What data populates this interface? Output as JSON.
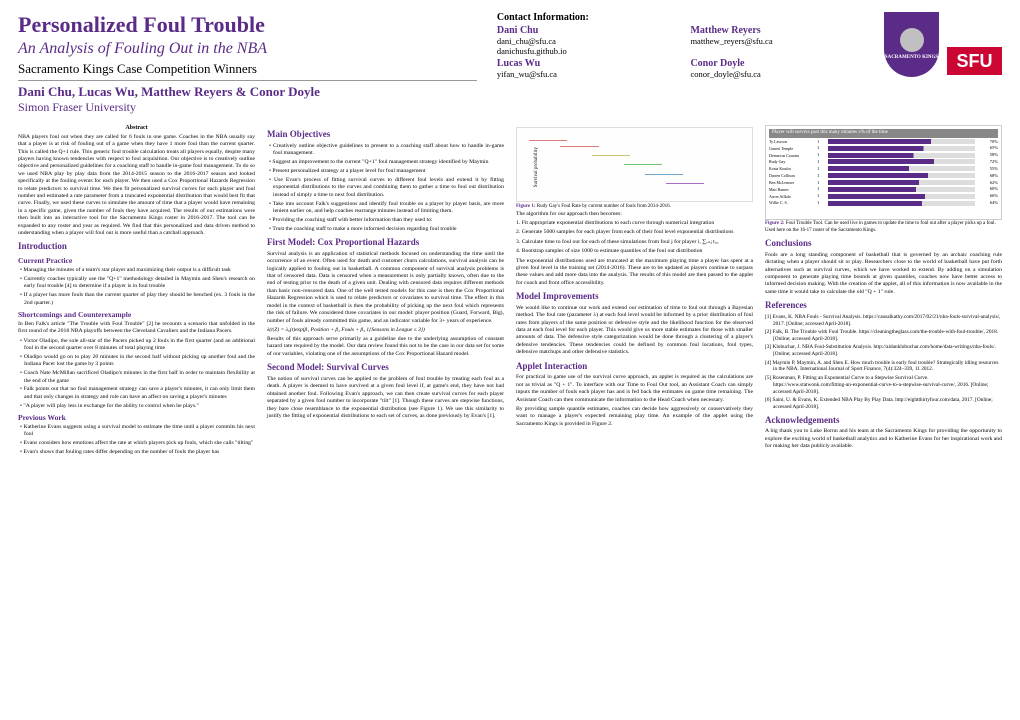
{
  "header": {
    "title": "Personalized Foul Trouble",
    "subtitle": "An Analysis of Fouling Out in the NBA",
    "competition": "Sacramento Kings Case Competition Winners",
    "authors": "Dani Chu, Lucas Wu, Matthew Reyers & Conor Doyle",
    "affiliation": "Simon Fraser University",
    "contact_title": "Contact Information:",
    "contacts": [
      {
        "name": "Dani Chu",
        "email": "dani_chu@sfu.ca",
        "extra": "danichusfu.github.io"
      },
      {
        "name": "Matthew Reyers",
        "email": "matthew_reyers@sfu.ca"
      },
      {
        "name": "Lucas Wu",
        "email": "yifan_wu@sfu.ca"
      },
      {
        "name": "Conor Doyle",
        "email": "conor_doyle@sfu.ca"
      }
    ],
    "logo_sfu": "SFU",
    "logo_kings": "SACRAMENTO KINGS"
  },
  "col1": {
    "abstract_label": "Abstract",
    "abstract": "NBA players foul out when they are called for 6 fouls in one game. Coaches in the NBA usually say that a player is at risk of fouling out of a game when they have 1 more foul than the current quarter. This is called the Q+1 rule. This generic foul trouble calculation treats all players equally, despite many players having known tendencies with respect to foul acquisition. Our objective is to creatively outline objective and personalized guidelines for a coaching staff to handle in-game foul management. To do so we used NBA play by play data from the 2014-2015 season to the 2016-2017 season and looked specifically at the fouling events for each player. We then used a Cox Proportional Hazards Regression to relate predictors to survival time. We then fit personalized survival curves for each player and foul number and estimated a rate parameter from a truncated exponential distribution that would best fit that curve. Finally, we used these curves to simulate the amount of time that a player would have remaining in a specific game, given the number of fouls they have acquired. The results of our estimations were then built into an interactive tool for the Sacramento Kings roster in 2016-2017. The tool can be expanded to any roster and year as required. We find that this personalized and data driven method to understanding when a player will foul out is more useful than a catchall approach.",
    "intro_title": "Introduction",
    "cp_title": "Current Practice",
    "cp_b1": "Managing the minutes of a team's star player and maximizing their output is a difficult task",
    "cp_b2": "Currently coaches typically use the \"Q+1\" methodology detailed in Maymin and Shen's research on early foul trouble [4] to determine if a player is in foul trouble",
    "cp_b3": "If a player has more fouls than the current quarter of play they should be benched (ex. 3 fouls in the 2nd quarter.)",
    "sc_title": "Shortcomings and Counterexample",
    "sc_para": "In Ben Falk's article \"The Trouble with Foul Trouble\" [2] he recounts a scenario that unfolded in the first round of the 2018 NBA playoffs between the Cleveland Cavaliers and the Indiana Pacers.",
    "sc_b1": "Victor Oladipo, the sole all-star of the Pacers picked up 2 fouls in the first quarter (and an additional foul in the second quarter over 8 minutes of total playing time",
    "sc_b2": "Oladipo would go on to play 20 minutes in the second half without picking up another foul and the Indiana Pacer lost the game by 3 points",
    "sc_b3": "Coach Nate McMillan sacrificed Oladipo's minutes in the first half in order to maintain flexibility at the end of the game",
    "sc_b4": "Falk points out that no foul management strategy can save a player's minutes, it can only limit them and that only changes in strategy and role can have an affect on saving a player's minutes",
    "sc_b5": "\"A player will play less in exchange for the ability to control when he plays.\"",
    "pw_title": "Previous Work",
    "pw_b1": "Katherine Evans suggests using a survival model to estimate the time until a player commits his next foul",
    "pw_b2": "Evans considers how emotions affect the rate at which players pick up fouls, which she calls \"tilting\"",
    "pw_b3": "Evan's shows that fouling rates differ depending on the number of fouls the player has"
  },
  "col2": {
    "mo_title": "Main Objectives",
    "mo_b1": "Creatively outline objective guidelines to present to a coaching staff about how to handle in-game foul management.",
    "mo_b2": "Suggest an improvement to the current \"Q+1\" foul management strategy identified by Maymin",
    "mo_b3": "Present personalized strategy at a player level for foul management",
    "mo_b4": "Use Evan's process of fitting survival curves to different foul levels and extend it by fitting exponential distributions to the curves and combining them to gather a time to foul out distribution instead of simply a time to next foul distribution.",
    "mo_b5": "Take into account Falk's suggestions and identify foul trouble on a player by player basis, are more lenient earlier on, and help coaches rearrange minutes instead of limiting them.",
    "mo_b6": "Providing the coaching staff with better information than they used to:",
    "mo_b7": "Trust the coaching staff to make a more informed decision regarding foul trouble",
    "fm_title": "First Model: Cox Proportional Hazards",
    "fm_p1": "Survival analysis is an application of statistical methods focused on understanding the time until the occurrence of an event. Often used for death and customer churn calculations, survival analysis can be logically applied to fouling out in basketball. A common component of survival analysis problems is that of censored data. Data is censored when a measurement is only partially known, often due to the end of testing prior to the death of a given unit. Dealing with censored data requires different methods than basic non-censored data. One of the well tested models for this case is then the Cox Proportional Hazards Regression which is used to relate predictors or covariates to survival time. The effect in this model in the context of basketball is then the probability of picking up the next foul which represents the risk of failure. We considered three covariates in our model: player position (Guard, Forward, Big), number of fouls already committed this game, and an indicator variable for 3+ years of experience.",
    "fm_formula": "λ(t|Z) = λ₀(t)exp(β₁ Position + β₂ Fouls + β₃ 1{Seasons in League ≤ 3})",
    "fm_p2": "Results of this approach serve primarily as a guideline due to the underlying assumption of constant hazard rate required by the model. Our data review found this not to be the case in our data set for some of our variables, violating one of the assumptions of the Cox Proportional Hazard model.",
    "sm_title": "Second Model: Survival Curves",
    "sm_p1": "The notion of survival curves can be applied to the problem of foul trouble by treating each foul as a death. A player is deemed to have survived at a given foul level if, at game's end, they have not had obtained another foul. Following Evan's approach, we can then create survival curves for each player separated by a given foul number to incorporate \"tilt\" [1]. Though these curves are stepwise functions, they bare close resemblance to the exponential distribution (see Figure 1). We use this similarity to justify the fitting of exponential distributions to each set of curves, as done previously by Evan's [1]."
  },
  "col3": {
    "fig1": {
      "caption_label": "Figure 1:",
      "caption": "Rudy Gay's Foul Rate by current number of fouls from 2014-2016.",
      "yaxis": "Survival probability",
      "series": [
        {
          "label": "FOUL_FROM=0",
          "color": "#e07b7b"
        },
        {
          "label": "FOUL_FROM=1",
          "color": "#c5c76d"
        },
        {
          "label": "FOUL_FROM=2",
          "color": "#6dc77b"
        },
        {
          "label": "FOUL_FROM=3",
          "color": "#6da7c7"
        },
        {
          "label": "FOUL_FROM=4",
          "color": "#a76dc7"
        }
      ],
      "ylim": [
        0,
        1
      ],
      "xlim": [
        0,
        2500
      ]
    },
    "algo_intro": "The algorithm for our approach then becomes:",
    "algo_1": "1. Fit appropriate exponential distributions to each curve through numerical integration",
    "algo_2": "2. Generate 5000 samples for each player from each of their foul level exponential distributions",
    "algo_3": "3. Calculate time to foul out for each of these simulations from foul j for player i, ∑ₑ₌ⱼ tᵢ,ₑ",
    "algo_4": "4. Bootstrap samples of size 1000 to estimate quantiles of the foul out distribution",
    "ed_para": "The exponential distributions used are truncated at the maximum playing time a player has spent at a given foul level in the training set (2014-2016). These are to be updated as players continue to surpass these values and add more data into the analysis. The results of this model are then passed to the applet for coach and front office accessibility.",
    "mi_title": "Model Improvements",
    "mi_p1": "We would like to continue our work and extend our estimation of time to foul out through a Bayesian method. The foul rate (parameter λ) at each foul level would be informed by a prior distribution of foul rates from players of the same position or defensive style and the likelihood function for the observed data at each foul level for each player. This would give us more stable estimates for those with smaller amounts of data. The defensive style categorization would be done through a clustering of a player's defensive tendencies. These tendencies could be defined by common foul locations, foul types, defensive matchups and other defensive statistics.",
    "ai_title": "Applet Interaction",
    "ai_p1": "For practical in game use of the survival curve approach, an applet is required as the calculations are not as trivial as \"Q + 1\". To interface with our Time to Foul Out tool, an Assistant Coach can simply inputs the number of fouls each player has and is fed back the estimates on game time remaining. The Assistant Coach can then communicate the information to the Head Coach when necessary.",
    "ai_p2": "By providing sample quantile estimates, coaches can decide how aggressively or conservatively they want to manage a player's expected remaining play time. An example of the applet using the Sacramento Kings is provided in Figure 2."
  },
  "col4": {
    "fig2": {
      "caption_label": "Figure 2:",
      "caption": "Foul Trouble Tool. Can be used live in games to update the time to foul out after a player picks up a foul. Used here on the 16-17 roster of the Sacramento Kings.",
      "header": "Player will survive past this many minutes x% of the time",
      "cols": [
        "Foul",
        "75%",
        "50%"
      ],
      "players": [
        "Ty Lawson",
        "Garrett Temple",
        "Demarcus Cousins",
        "Rudy Gay",
        "Kosta Koufos",
        "Darren Collison",
        "Ben McLemore",
        "Matt Barnes",
        "Arron Afflalo",
        "Willie C. S."
      ],
      "pcts": [
        70,
        65,
        58,
        72,
        55,
        68,
        62,
        60,
        66,
        64
      ]
    },
    "con_title": "Conclusions",
    "con_p1": "Fouls are a long standing component of basketball that is governed by an archaic coaching rule dictating when a player should sit or play. Researchers close to the world of basketball have put forth alternatives such as survival curves, which we have worked to extend. By adding on a simulation component to generate playing time bounds at given quantiles, coaches now have better access to informed decision making. With the creation of the applet, all of this information is now available in the same time it would take to calculate the old \"Q + 1\" rule.",
    "ref_title": "References",
    "refs": [
      "[1] Evans, K. NBA Fouls - Survival Analysis. https://causalkathy.com/2017/02/21/nba-fouls-survival-analysis/, 2017. [Online; accessed April-2018].",
      "[2] Falk, B. The Trouble with Foul Trouble. https://cleaningtheglass.com/the-trouble-with-foul-trouble/, 2018. [Online; accessed April-2018].",
      "[3] Klobuchar, J. NBA Foul-Substitution Analysis. http://aidanklobuchar.com/home/data-writings/nba-fouls/. [Online; accessed April-2018].",
      "[4] Maymin P, Maymin, A. and Shen E. How much trouble is early foul trouble? Strategically idling resources in the NBA. International Journal of Sport Finance, 7(4):324–339, 11 2012.",
      "[5] Rosenman, P. Fitting an Exponential Curve to a Stepwise Survival Curve. https://www.statwonk.com/fitting-an-exponential-curve-to-a-stepwise-survival-curve/, 2016. [Online; accessed April-2018].",
      "[6] Saini, U. & Evans, K. Extended NBA Play By Play Data. http://eightthirtyfour.com/data, 2017. [Online; accessed April-2018]."
    ],
    "ack_title": "Acknowledgements",
    "ack_p1": "A big thank you to Luke Bornn and his team at the Sacramento Kings for providing the opportunity to explore the exciting world of basketball analytics and to Katherine Evans for her inspirational work and for making her data publicly available."
  }
}
